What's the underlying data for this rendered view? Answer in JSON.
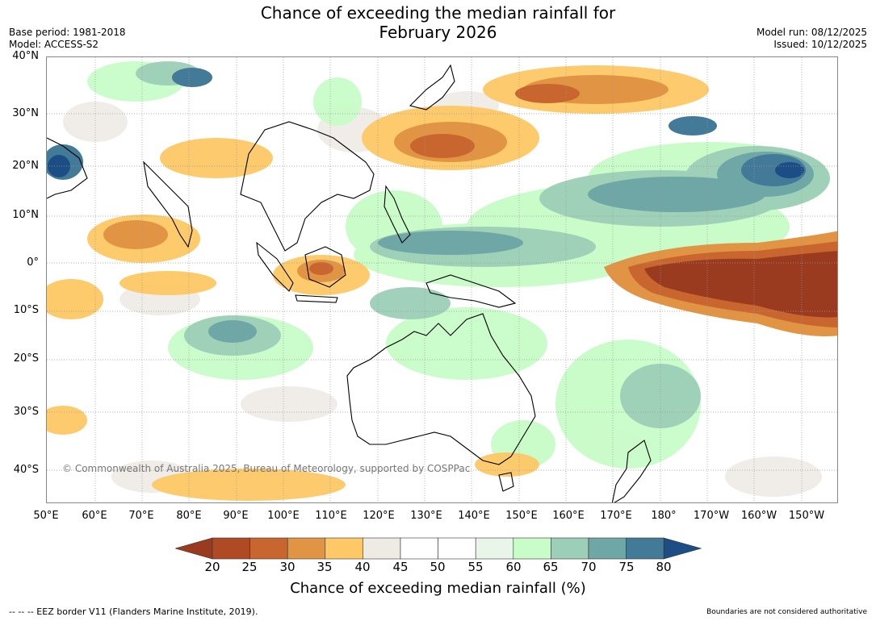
{
  "title_line1": "Chance of exceeding the median rainfall for",
  "title_line2": "February 2026",
  "base_period": "Base period: 1981-2018",
  "model": "Model: ACCESS-S2",
  "model_run": "Model run: 08/12/2025",
  "issued": "Issued: 10/12/2025",
  "copyright": "© Commonwealth of Australia 2025, Bureau of Meteorology, supported by COSPPac",
  "lat_labels": [
    "40°N",
    "30°N",
    "20°N",
    "10°N",
    "0°",
    "10°S",
    "20°S",
    "30°S",
    "40°S"
  ],
  "lon_labels": [
    "50°E",
    "60°E",
    "70°E",
    "80°E",
    "90°E",
    "100°E",
    "110°E",
    "120°E",
    "130°E",
    "140°E",
    "150°E",
    "160°E",
    "170°E",
    "180°",
    "170°W",
    "160°W",
    "150°W"
  ],
  "colorbar": {
    "ticks": [
      "20",
      "25",
      "30",
      "35",
      "40",
      "45",
      "50",
      "55",
      "60",
      "65",
      "70",
      "75",
      "80"
    ],
    "colors": [
      "#9a3b1f",
      "#b04a25",
      "#c9662f",
      "#e19443",
      "#fdc865",
      "#eeebe5",
      "#ffffff",
      "#ffffff",
      "#e9f5e9",
      "#c8fcc8",
      "#9ccfb7",
      "#6ea7a6",
      "#427a97",
      "#1c4e85"
    ],
    "title": "Chance of exceeding median rainfall (%)"
  },
  "footer_left": "--  --  -- EEZ border V11 (Flanders Marine Institute, 2019).",
  "footer_right": "Boundaries are not considered authoritative"
}
